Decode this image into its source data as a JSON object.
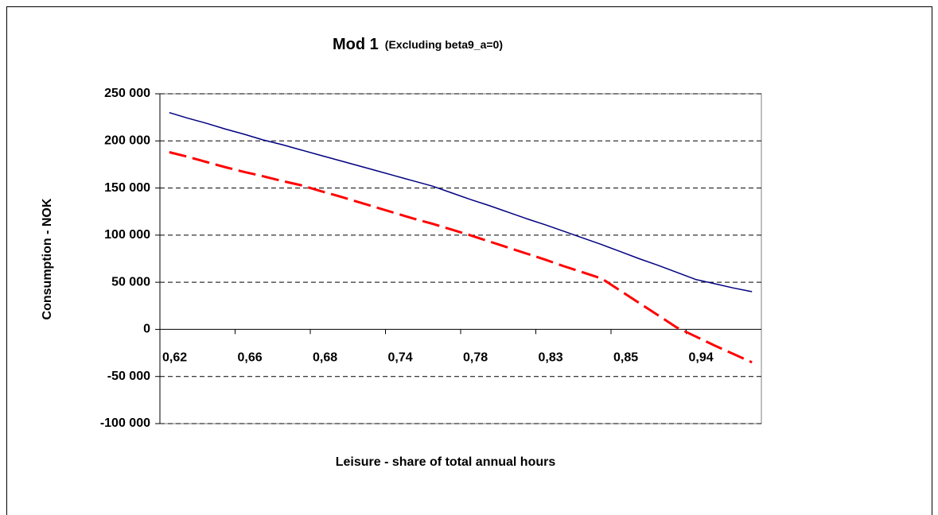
{
  "chart_data": {
    "type": "line",
    "title": "Mod 1",
    "subtitle": "(Excluding beta9_a=0)",
    "x_label": "Leisure - share of total annual hours",
    "y_label": "Consumption - NOK",
    "categories": [
      "0,62",
      null,
      null,
      null,
      "0,66",
      null,
      null,
      null,
      "0,68",
      null,
      null,
      null,
      "0,74",
      null,
      null,
      null,
      "0,78",
      null,
      null,
      null,
      "0,83",
      null,
      null,
      null,
      "0,85",
      null,
      null,
      null,
      "0,94",
      null,
      null,
      null
    ],
    "series": [
      {
        "color": "#000080",
        "dash": false,
        "values": [
          230000,
          224000,
          218500,
          212500,
          207000,
          201000,
          196000,
          190500,
          185000,
          179500,
          174000,
          168500,
          163000,
          157500,
          152000,
          145000,
          138000,
          131500,
          124500,
          117500,
          111000,
          104000,
          97000,
          90000,
          82500,
          75000,
          68000,
          60500,
          53000,
          48500,
          44000,
          40000
        ]
      },
      {
        "color": "#ff0000",
        "dash": true,
        "values": [
          188000,
          183000,
          177500,
          172000,
          167000,
          162500,
          157500,
          153000,
          147000,
          141500,
          135500,
          129500,
          123500,
          117500,
          112000,
          106000,
          100000,
          93500,
          87000,
          80500,
          74000,
          67000,
          60500,
          54000,
          41000,
          28000,
          15000,
          2000,
          -7500,
          -17000,
          -26000,
          -35000
        ]
      }
    ],
    "ylim": [
      -100000,
      250000
    ],
    "yticks": [
      {
        "value": -100000,
        "label": "-100 000"
      },
      {
        "value": -50000,
        "label": "-50 000"
      },
      0,
      {
        "value": 50000,
        "label": "50 000"
      },
      {
        "value": 100000,
        "label": "100 000"
      },
      {
        "value": 150000,
        "label": "150 000"
      },
      {
        "value": 200000,
        "label": "200 000"
      },
      {
        "value": 250000,
        "label": "250 000"
      }
    ],
    "grid": true
  }
}
